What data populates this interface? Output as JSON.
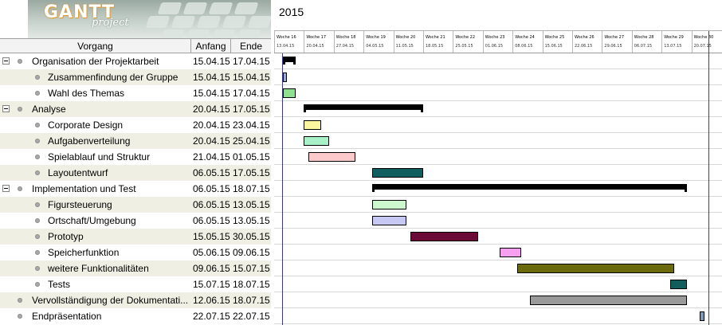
{
  "logo": {
    "brand": "GANTT",
    "sub": "project"
  },
  "columns": {
    "task": "Vorgang",
    "start": "Anfang",
    "end": "Ende"
  },
  "year": "2015",
  "weeks": [
    {
      "label": "Woche 16",
      "date": "13.04.15"
    },
    {
      "label": "Woche 17",
      "date": "20.04.15"
    },
    {
      "label": "Woche 18",
      "date": "27.04.15"
    },
    {
      "label": "Woche 19",
      "date": "04.05.15"
    },
    {
      "label": "Woche 20",
      "date": "11.05.15"
    },
    {
      "label": "Woche 21",
      "date": "18.05.15"
    },
    {
      "label": "Woche 22",
      "date": "25.05.15"
    },
    {
      "label": "Woche 23",
      "date": "01.06.15"
    },
    {
      "label": "Woche 24",
      "date": "08.06.15"
    },
    {
      "label": "Woche 25",
      "date": "15.06.15"
    },
    {
      "label": "Woche 26",
      "date": "22.06.15"
    },
    {
      "label": "Woche 27",
      "date": "29.06.15"
    },
    {
      "label": "Woche 28",
      "date": "06.07.15"
    },
    {
      "label": "Woche 29",
      "date": "13.07.15"
    },
    {
      "label": "Woche 30",
      "date": "20.07.15"
    }
  ],
  "tasks": [
    {
      "name": "Organisation der Projektarbeit",
      "start": "15.04.15",
      "end": "17.04.15",
      "level": 0,
      "summary": true,
      "color": "#000000"
    },
    {
      "name": "Zusammenfindung der Gruppe",
      "start": "15.04.15",
      "end": "15.04.15",
      "level": 1,
      "summary": false,
      "color": "#9aaad0"
    },
    {
      "name": "Wahl des Themas",
      "start": "15.04.15",
      "end": "17.04.15",
      "level": 1,
      "summary": false,
      "color": "#8fe08f"
    },
    {
      "name": "Analyse",
      "start": "20.04.15",
      "end": "17.05.15",
      "level": 0,
      "summary": true,
      "color": "#000000"
    },
    {
      "name": "Corporate Design",
      "start": "20.04.15",
      "end": "23.04.15",
      "level": 1,
      "summary": false,
      "color": "#fbf5a0"
    },
    {
      "name": "Aufgabenverteilung",
      "start": "20.04.15",
      "end": "25.04.15",
      "level": 1,
      "summary": false,
      "color": "#a8f0c8"
    },
    {
      "name": "Spielablauf und Struktur",
      "start": "21.04.15",
      "end": "01.05.15",
      "level": 1,
      "summary": false,
      "color": "#fccaca"
    },
    {
      "name": "Layoutentwurf",
      "start": "06.05.15",
      "end": "17.05.15",
      "level": 1,
      "summary": false,
      "color": "#115e60"
    },
    {
      "name": "Implementation und Test",
      "start": "06.05.15",
      "end": "18.07.15",
      "level": 0,
      "summary": true,
      "color": "#000000"
    },
    {
      "name": "Figursteuerung",
      "start": "06.05.15",
      "end": "13.05.15",
      "level": 1,
      "summary": false,
      "color": "#cdf8cd"
    },
    {
      "name": "Ortschaft/Umgebung",
      "start": "06.05.15",
      "end": "13.05.15",
      "level": 1,
      "summary": false,
      "color": "#c8c8f5"
    },
    {
      "name": "Prototyp",
      "start": "15.05.15",
      "end": "30.05.15",
      "level": 1,
      "summary": false,
      "color": "#6b0a36"
    },
    {
      "name": "Speicherfunktion",
      "start": "05.06.15",
      "end": "09.06.15",
      "level": 1,
      "summary": false,
      "color": "#f8a0f0"
    },
    {
      "name": "weitere Funktionalitäten",
      "start": "09.06.15",
      "end": "15.07.15",
      "level": 1,
      "summary": false,
      "color": "#6b6b0e"
    },
    {
      "name": "Tests",
      "start": "15.07.15",
      "end": "18.07.15",
      "level": 1,
      "summary": false,
      "color": "#115e5a"
    },
    {
      "name": "Vervollständigung der Dokumentati...",
      "start": "12.06.15",
      "end": "18.07.15",
      "level": 0,
      "summary": false,
      "color": "#9a9a9a"
    },
    {
      "name": "Endpräsentation",
      "start": "22.07.15",
      "end": "22.07.15",
      "level": 0,
      "summary": false,
      "color": "#7a9ab8"
    }
  ]
}
